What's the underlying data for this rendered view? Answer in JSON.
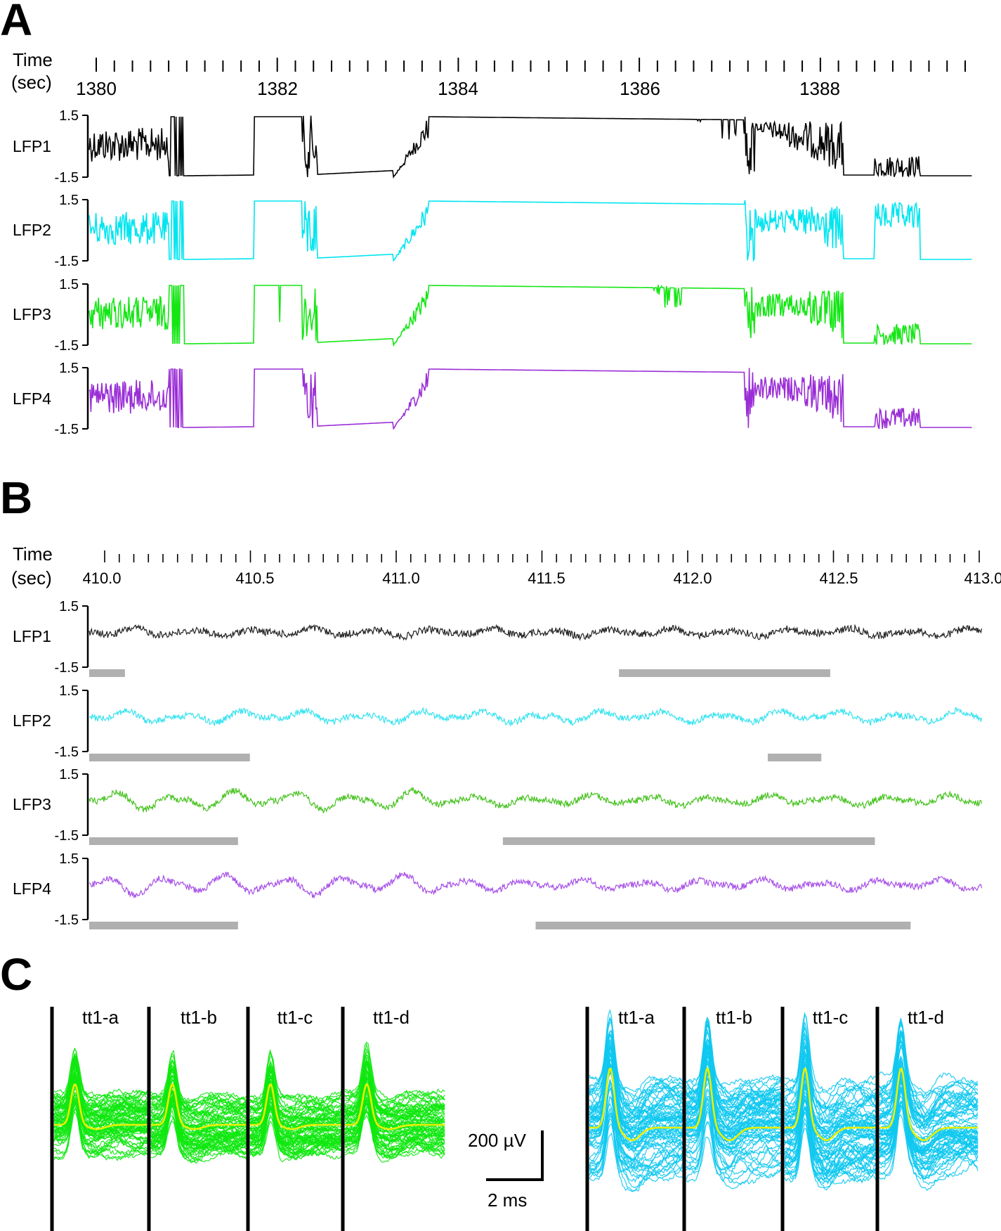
{
  "panels": {
    "a": {
      "letter": "A",
      "time_label_1": "Time",
      "time_label_2": "(sec)",
      "ticks": [
        "1380",
        "1382",
        "1384",
        "1386",
        "1388"
      ],
      "y_top": "1.5",
      "y_bottom": "-1.5",
      "channels": [
        {
          "name": "LFP1",
          "color": "#000000"
        },
        {
          "name": "LFP2",
          "color": "#00e5f0"
        },
        {
          "name": "LFP3",
          "color": "#14e614"
        },
        {
          "name": "LFP4",
          "color": "#9a2ed6"
        }
      ]
    },
    "b": {
      "letter": "B",
      "time_label_1": "Time",
      "time_label_2": "(sec)",
      "ticks": [
        "410.0",
        "410.5",
        "411.0",
        "411.5",
        "412.0",
        "412.5",
        "413.0"
      ],
      "y_top": "1.5",
      "y_bottom": "-1.5",
      "channels": [
        {
          "name": "LFP1",
          "color": "#222222",
          "bars": [
            [
              410.0,
              410.12
            ],
            [
              411.78,
              412.49
            ]
          ]
        },
        {
          "name": "LFP2",
          "color": "#33e3f0",
          "bars": [
            [
              410.0,
              410.54
            ],
            [
              412.28,
              412.46
            ]
          ]
        },
        {
          "name": "LFP3",
          "color": "#46c21f",
          "bars": [
            [
              410.0,
              410.5
            ],
            [
              411.39,
              412.64
            ]
          ]
        },
        {
          "name": "LFP4",
          "color": "#a750e8",
          "bars": [
            [
              410.0,
              410.5
            ],
            [
              411.5,
              412.76
            ]
          ]
        }
      ],
      "bar_color": "#b0b0b0"
    },
    "c": {
      "letter": "C",
      "left_group": {
        "labels": [
          "tt1-a",
          "tt1-b",
          "tt1-c",
          "tt1-d"
        ],
        "color": "#10e810",
        "mean_color": "#e8f000"
      },
      "right_group": {
        "labels": [
          "tt1-a",
          "tt1-b",
          "tt1-c",
          "tt1-d"
        ],
        "color": "#10c8f0",
        "mean_color": "#e8f000"
      },
      "scale_voltage": "200 µV",
      "scale_time": "2 ms"
    }
  }
}
